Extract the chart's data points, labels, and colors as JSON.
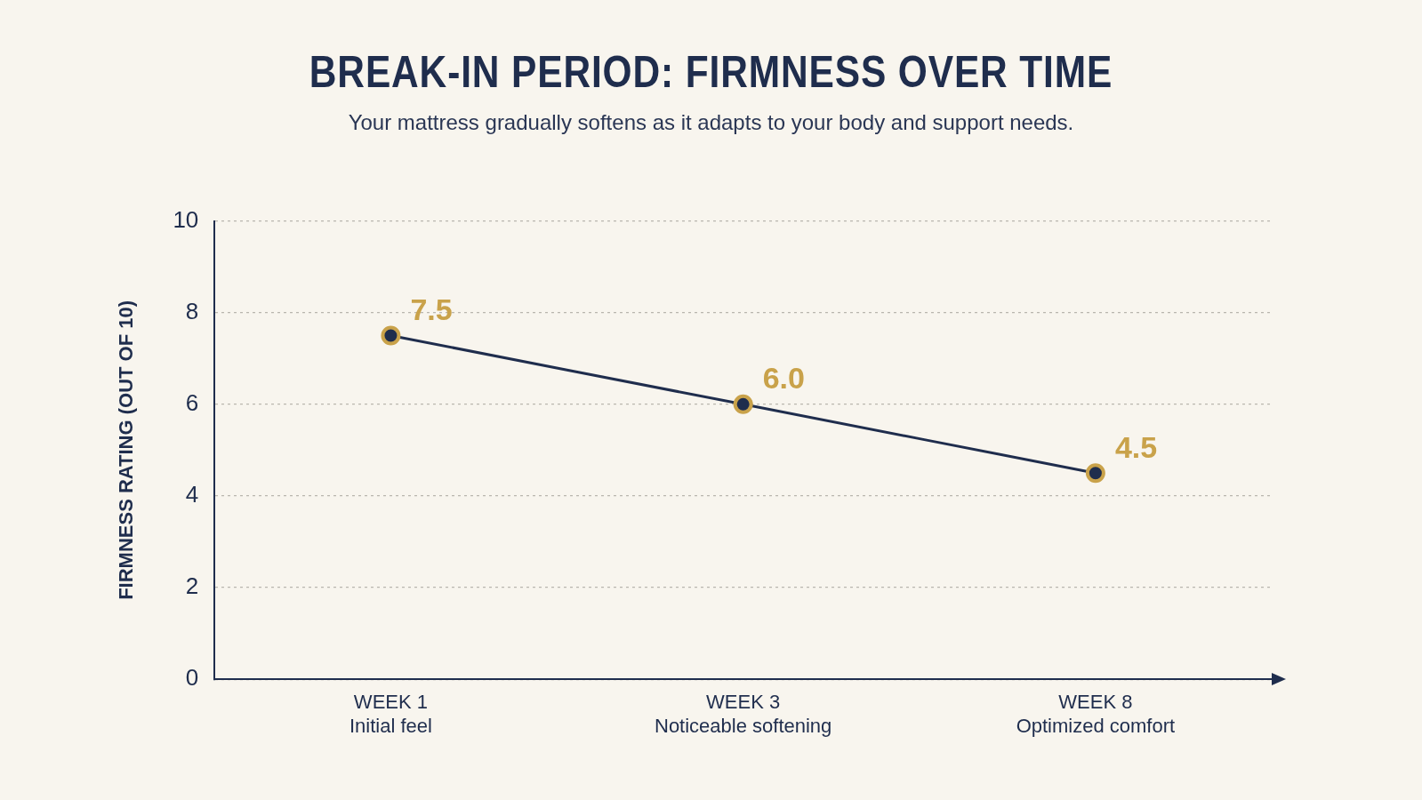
{
  "chart_data": {
    "type": "line",
    "title": "BREAK-IN PERIOD: FIRMNESS OVER TIME",
    "subtitle": "Your mattress gradually softens as it adapts to your body and support needs.",
    "ylabel": "FIRMNESS RATING (OUT OF 10)",
    "categories": [
      "WEEK 1\nInitial feel",
      "WEEK 3\nNoticeable softening",
      "WEEK 8\nOptimized comfort"
    ],
    "series": [
      {
        "color": "#1f2d4d",
        "values": [
          7.5,
          6.0,
          4.5
        ],
        "value_labels": [
          "7.5",
          "6.0",
          "4.5"
        ]
      }
    ],
    "ylim": [
      0,
      10
    ],
    "yticks": [
      0,
      2,
      4,
      6,
      8,
      10
    ],
    "grid": "y",
    "legend": false,
    "marker": "circle",
    "line_style": "solid"
  }
}
